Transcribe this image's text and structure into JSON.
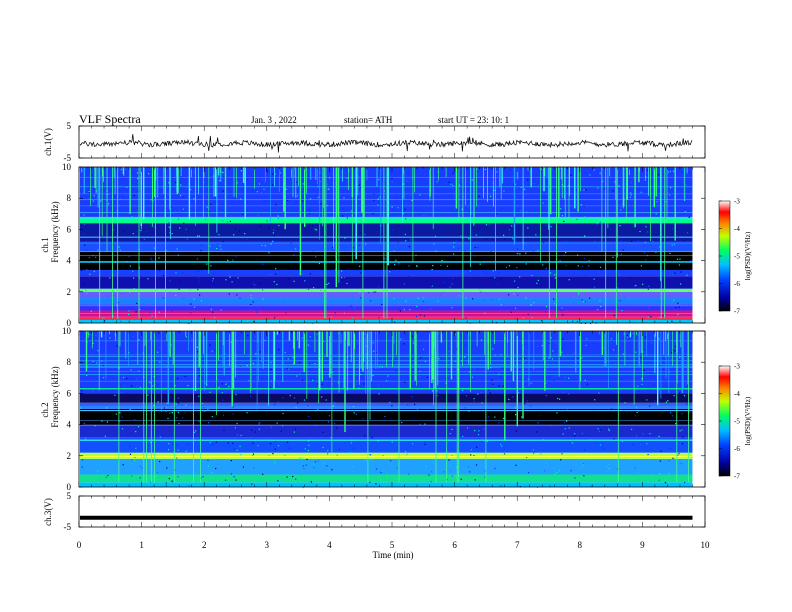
{
  "header": {
    "title": "VLF  Spectra",
    "date": "Jan. 3  , 2022",
    "station": "station= ATH",
    "start": "start  UT  =   23: 10: 1"
  },
  "chart_data": [
    {
      "type": "line",
      "name": "ch1-waveform",
      "ylabel": "ch.1(V)",
      "yticks": [
        "5",
        "-5"
      ],
      "ylim": [
        -5,
        5
      ],
      "xlim": [
        0,
        10
      ],
      "data_end_min": 9.8,
      "baseline": -0.5,
      "color": "#000000"
    },
    {
      "type": "heatmap",
      "name": "ch1-spectrogram",
      "ylabel": "ch.1\nFrequency (kHz)",
      "ylabel_line1": "ch.1",
      "ylabel_line2": "Frequency (kHz)",
      "yticks": [
        "0",
        "2",
        "4",
        "6",
        "8",
        "10"
      ],
      "ylim": [
        0,
        10
      ],
      "xlim": [
        0,
        10
      ],
      "colorbar": {
        "label": "log(PSD)(V²/Hz)",
        "ticks": [
          "-3",
          "-4",
          "-5",
          "-6",
          "-7"
        ],
        "range": [
          -7,
          -3
        ]
      },
      "bands_khz": [
        {
          "from": 0.0,
          "to": 0.2,
          "color": "#00c8ff"
        },
        {
          "from": 0.2,
          "to": 0.4,
          "color": "#ff3060"
        },
        {
          "from": 0.4,
          "to": 0.8,
          "color": "#d0108a"
        },
        {
          "from": 0.8,
          "to": 1.2,
          "color": "#3030ff"
        },
        {
          "from": 1.2,
          "to": 1.6,
          "color": "#1a80ff"
        },
        {
          "from": 1.6,
          "to": 2.0,
          "color": "#6060ff"
        },
        {
          "from": 2.0,
          "to": 2.2,
          "color": "#40ffb0"
        },
        {
          "from": 2.2,
          "to": 3.0,
          "color": "#1010b0"
        },
        {
          "from": 3.0,
          "to": 3.4,
          "color": "#1a40ff"
        },
        {
          "from": 3.4,
          "to": 4.6,
          "color": "#000000"
        },
        {
          "from": 4.6,
          "to": 5.2,
          "color": "#1a50ff"
        },
        {
          "from": 5.2,
          "to": 6.4,
          "color": "#0b1aa0"
        },
        {
          "from": 6.4,
          "to": 6.8,
          "color": "#00ff90"
        },
        {
          "from": 6.8,
          "to": 10.0,
          "color": "#1a3cff"
        }
      ],
      "lines_khz": [
        {
          "f": 0.25,
          "color": "#ff2040"
        },
        {
          "f": 2.05,
          "color": "#80ff40"
        },
        {
          "f": 3.9,
          "color": "#00d0ff"
        },
        {
          "f": 5.5,
          "color": "#40c0ff"
        },
        {
          "f": 6.6,
          "color": "#00ff80"
        }
      ]
    },
    {
      "type": "heatmap",
      "name": "ch2-spectrogram",
      "ylabel": "ch.2\nFrequency (kHz)",
      "ylabel_line1": "ch.2",
      "ylabel_line2": "Frequency (kHz)",
      "yticks": [
        "0",
        "2",
        "4",
        "6",
        "8",
        "10"
      ],
      "ylim": [
        0,
        10
      ],
      "xlim": [
        0,
        10
      ],
      "colorbar": {
        "label": "log(PSD)(V²/Hz)",
        "ticks": [
          "-3",
          "-4",
          "-5",
          "-6",
          "-7"
        ],
        "range": [
          -7,
          -3
        ]
      },
      "bands_khz": [
        {
          "from": 0.0,
          "to": 0.3,
          "color": "#00c0ff"
        },
        {
          "from": 0.3,
          "to": 0.8,
          "color": "#10e090"
        },
        {
          "from": 0.8,
          "to": 1.8,
          "color": "#20a0ff"
        },
        {
          "from": 1.8,
          "to": 2.2,
          "color": "#b0ff40"
        },
        {
          "from": 2.2,
          "to": 3.2,
          "color": "#1050ff"
        },
        {
          "from": 3.2,
          "to": 4.0,
          "color": "#1a2ad0"
        },
        {
          "from": 4.0,
          "to": 5.0,
          "color": "#000000"
        },
        {
          "from": 5.0,
          "to": 5.4,
          "color": "#3060ff"
        },
        {
          "from": 5.4,
          "to": 6.0,
          "color": "#0a0a60"
        },
        {
          "from": 6.0,
          "to": 10.0,
          "color": "#1a3cff"
        }
      ],
      "lines_khz": [
        {
          "f": 1.95,
          "color": "#ffff40"
        },
        {
          "f": 3.0,
          "color": "#40ffe0"
        },
        {
          "f": 4.9,
          "color": "#40c0ff"
        },
        {
          "f": 6.3,
          "color": "#00ff80"
        }
      ]
    },
    {
      "type": "line",
      "name": "ch3-waveform",
      "ylabel": "ch.3(V)",
      "yticks": [
        "5",
        "-5"
      ],
      "ylim": [
        -5,
        5
      ],
      "xlim": [
        0,
        10
      ],
      "data_end_min": 9.8,
      "baseline": -2,
      "color": "#000000"
    }
  ],
  "xaxis": {
    "label": "Time  (min)",
    "ticks": [
      "0",
      "1",
      "2",
      "3",
      "4",
      "5",
      "6",
      "7",
      "8",
      "9",
      "10"
    ],
    "range": [
      0,
      10
    ]
  }
}
